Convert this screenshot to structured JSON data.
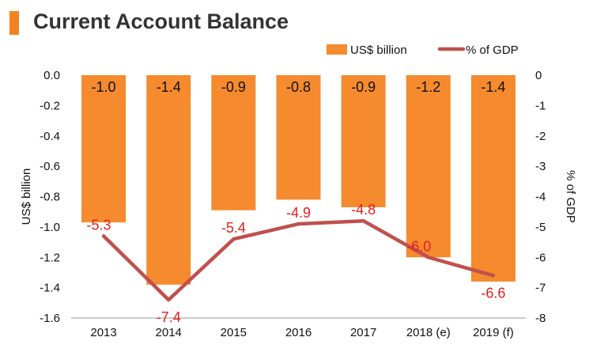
{
  "header": {
    "title": "Current Account Balance"
  },
  "colors": {
    "accent": "#F58220",
    "bar": "#F58A2E",
    "line": "#C0504D",
    "line_label": "#E0201B"
  },
  "chart_data": {
    "type": "bar+line",
    "title": "Current Account Balance",
    "categories": [
      "2013",
      "2014",
      "2015",
      "2016",
      "2017",
      "2018 (e)",
      "2019 (f)"
    ],
    "series": [
      {
        "name": "US$ billion",
        "type": "bar",
        "axis": "left",
        "values": [
          -0.97,
          -1.38,
          -0.89,
          -0.82,
          -0.87,
          -1.2,
          -1.36
        ],
        "labels": [
          "-1.0",
          "-1.4",
          "-0.9",
          "-0.8",
          "-0.9",
          "-1.2",
          "-1.4"
        ]
      },
      {
        "name": "% of GDP",
        "type": "line",
        "axis": "right",
        "values": [
          -5.3,
          -7.4,
          -5.4,
          -4.9,
          -4.8,
          -6.0,
          -6.6
        ],
        "labels": [
          "-5.3",
          "-7.4",
          "-5.4",
          "-4.9",
          "-4.8",
          "-6.0",
          "-6.6"
        ]
      }
    ],
    "ylabel": "US$ billion",
    "y2label": "% of GDP",
    "ylim": [
      -1.6,
      0
    ],
    "y2lim": [
      -8,
      0
    ],
    "yticks": [
      "0.0",
      "-0.2",
      "-0.4",
      "-0.6",
      "-0.8",
      "-1.0",
      "-1.2",
      "-1.4",
      "-1.6"
    ],
    "y2ticks": [
      "0",
      "-1",
      "-2",
      "-3",
      "-4",
      "-5",
      "-6",
      "-7",
      "-8"
    ],
    "grid": false,
    "legend": "top-right"
  }
}
